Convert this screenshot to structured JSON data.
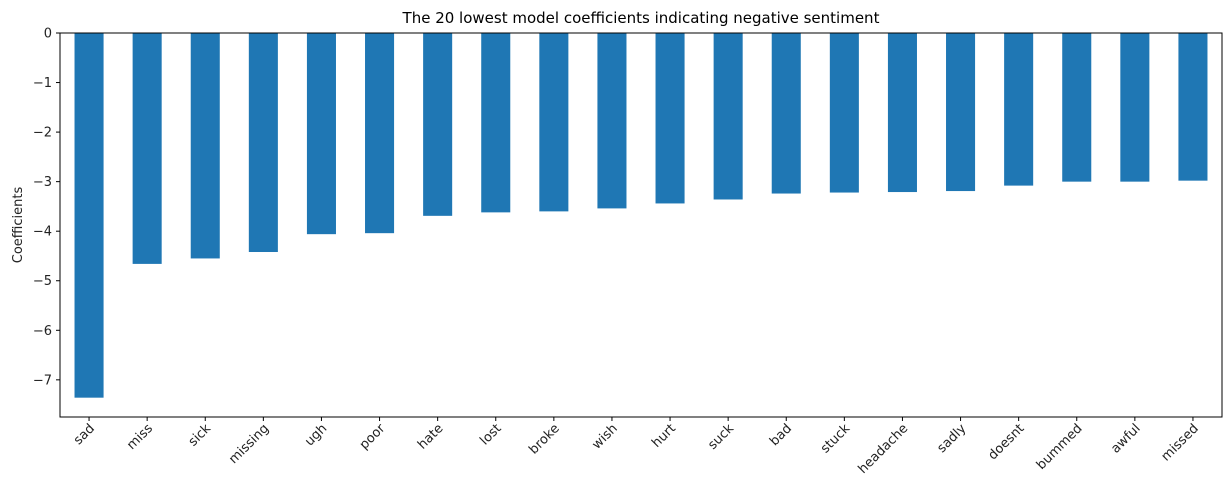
{
  "chart_data": {
    "type": "bar",
    "title": "The 20 lowest model coefficients indicating negative sentiment",
    "xlabel": "",
    "ylabel": "Coefficients",
    "categories": [
      "sad",
      "miss",
      "sick",
      "missing",
      "ugh",
      "poor",
      "hate",
      "lost",
      "broke",
      "wish",
      "hurt",
      "suck",
      "bad",
      "stuck",
      "headache",
      "sadly",
      "doesnt",
      "bummed",
      "awful",
      "missed"
    ],
    "values": [
      -7.36,
      -4.66,
      -4.55,
      -4.42,
      -4.06,
      -4.04,
      -3.69,
      -3.62,
      -3.6,
      -3.54,
      -3.44,
      -3.36,
      -3.24,
      -3.22,
      -3.21,
      -3.19,
      -3.08,
      -3.0,
      -3.0,
      -2.98
    ],
    "ylim": [
      -7.75,
      0
    ],
    "yticks": [
      0,
      -1,
      -2,
      -3,
      -4,
      -5,
      -6,
      -7
    ],
    "ytick_labels": [
      "0",
      "−1",
      "−2",
      "−3",
      "−4",
      "−5",
      "−6",
      "−7"
    ],
    "bar_color": "#1f77b4",
    "grid": false,
    "legend": "none"
  }
}
